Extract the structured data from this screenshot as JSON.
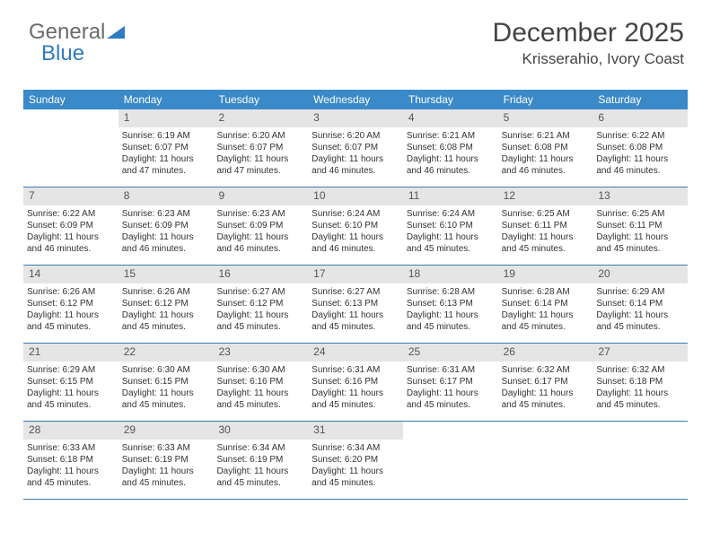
{
  "logo": {
    "text1": "General",
    "text2": "Blue"
  },
  "header": {
    "month_year": "December 2025",
    "location": "Krisserahio, Ivory Coast"
  },
  "colors": {
    "header_bg": "#3a89c9",
    "header_text": "#ffffff",
    "daynum_bg": "#e5e5e5",
    "week_border": "#3a7db0",
    "text": "#323232",
    "logo_gray": "#6b6b6b",
    "logo_blue": "#2f7bbf"
  },
  "typography": {
    "title_fontsize": 30,
    "location_fontsize": 17,
    "dayheader_fontsize": 12,
    "daynum_fontsize": 12,
    "body_fontsize": 10
  },
  "day_headers": [
    "Sunday",
    "Monday",
    "Tuesday",
    "Wednesday",
    "Thursday",
    "Friday",
    "Saturday"
  ],
  "weeks": [
    [
      {
        "n": "",
        "sr": "",
        "ss": "",
        "dl": ""
      },
      {
        "n": "1",
        "sr": "Sunrise: 6:19 AM",
        "ss": "Sunset: 6:07 PM",
        "dl": "Daylight: 11 hours and 47 minutes."
      },
      {
        "n": "2",
        "sr": "Sunrise: 6:20 AM",
        "ss": "Sunset: 6:07 PM",
        "dl": "Daylight: 11 hours and 47 minutes."
      },
      {
        "n": "3",
        "sr": "Sunrise: 6:20 AM",
        "ss": "Sunset: 6:07 PM",
        "dl": "Daylight: 11 hours and 46 minutes."
      },
      {
        "n": "4",
        "sr": "Sunrise: 6:21 AM",
        "ss": "Sunset: 6:08 PM",
        "dl": "Daylight: 11 hours and 46 minutes."
      },
      {
        "n": "5",
        "sr": "Sunrise: 6:21 AM",
        "ss": "Sunset: 6:08 PM",
        "dl": "Daylight: 11 hours and 46 minutes."
      },
      {
        "n": "6",
        "sr": "Sunrise: 6:22 AM",
        "ss": "Sunset: 6:08 PM",
        "dl": "Daylight: 11 hours and 46 minutes."
      }
    ],
    [
      {
        "n": "7",
        "sr": "Sunrise: 6:22 AM",
        "ss": "Sunset: 6:09 PM",
        "dl": "Daylight: 11 hours and 46 minutes."
      },
      {
        "n": "8",
        "sr": "Sunrise: 6:23 AM",
        "ss": "Sunset: 6:09 PM",
        "dl": "Daylight: 11 hours and 46 minutes."
      },
      {
        "n": "9",
        "sr": "Sunrise: 6:23 AM",
        "ss": "Sunset: 6:09 PM",
        "dl": "Daylight: 11 hours and 46 minutes."
      },
      {
        "n": "10",
        "sr": "Sunrise: 6:24 AM",
        "ss": "Sunset: 6:10 PM",
        "dl": "Daylight: 11 hours and 46 minutes."
      },
      {
        "n": "11",
        "sr": "Sunrise: 6:24 AM",
        "ss": "Sunset: 6:10 PM",
        "dl": "Daylight: 11 hours and 45 minutes."
      },
      {
        "n": "12",
        "sr": "Sunrise: 6:25 AM",
        "ss": "Sunset: 6:11 PM",
        "dl": "Daylight: 11 hours and 45 minutes."
      },
      {
        "n": "13",
        "sr": "Sunrise: 6:25 AM",
        "ss": "Sunset: 6:11 PM",
        "dl": "Daylight: 11 hours and 45 minutes."
      }
    ],
    [
      {
        "n": "14",
        "sr": "Sunrise: 6:26 AM",
        "ss": "Sunset: 6:12 PM",
        "dl": "Daylight: 11 hours and 45 minutes."
      },
      {
        "n": "15",
        "sr": "Sunrise: 6:26 AM",
        "ss": "Sunset: 6:12 PM",
        "dl": "Daylight: 11 hours and 45 minutes."
      },
      {
        "n": "16",
        "sr": "Sunrise: 6:27 AM",
        "ss": "Sunset: 6:12 PM",
        "dl": "Daylight: 11 hours and 45 minutes."
      },
      {
        "n": "17",
        "sr": "Sunrise: 6:27 AM",
        "ss": "Sunset: 6:13 PM",
        "dl": "Daylight: 11 hours and 45 minutes."
      },
      {
        "n": "18",
        "sr": "Sunrise: 6:28 AM",
        "ss": "Sunset: 6:13 PM",
        "dl": "Daylight: 11 hours and 45 minutes."
      },
      {
        "n": "19",
        "sr": "Sunrise: 6:28 AM",
        "ss": "Sunset: 6:14 PM",
        "dl": "Daylight: 11 hours and 45 minutes."
      },
      {
        "n": "20",
        "sr": "Sunrise: 6:29 AM",
        "ss": "Sunset: 6:14 PM",
        "dl": "Daylight: 11 hours and 45 minutes."
      }
    ],
    [
      {
        "n": "21",
        "sr": "Sunrise: 6:29 AM",
        "ss": "Sunset: 6:15 PM",
        "dl": "Daylight: 11 hours and 45 minutes."
      },
      {
        "n": "22",
        "sr": "Sunrise: 6:30 AM",
        "ss": "Sunset: 6:15 PM",
        "dl": "Daylight: 11 hours and 45 minutes."
      },
      {
        "n": "23",
        "sr": "Sunrise: 6:30 AM",
        "ss": "Sunset: 6:16 PM",
        "dl": "Daylight: 11 hours and 45 minutes."
      },
      {
        "n": "24",
        "sr": "Sunrise: 6:31 AM",
        "ss": "Sunset: 6:16 PM",
        "dl": "Daylight: 11 hours and 45 minutes."
      },
      {
        "n": "25",
        "sr": "Sunrise: 6:31 AM",
        "ss": "Sunset: 6:17 PM",
        "dl": "Daylight: 11 hours and 45 minutes."
      },
      {
        "n": "26",
        "sr": "Sunrise: 6:32 AM",
        "ss": "Sunset: 6:17 PM",
        "dl": "Daylight: 11 hours and 45 minutes."
      },
      {
        "n": "27",
        "sr": "Sunrise: 6:32 AM",
        "ss": "Sunset: 6:18 PM",
        "dl": "Daylight: 11 hours and 45 minutes."
      }
    ],
    [
      {
        "n": "28",
        "sr": "Sunrise: 6:33 AM",
        "ss": "Sunset: 6:18 PM",
        "dl": "Daylight: 11 hours and 45 minutes."
      },
      {
        "n": "29",
        "sr": "Sunrise: 6:33 AM",
        "ss": "Sunset: 6:19 PM",
        "dl": "Daylight: 11 hours and 45 minutes."
      },
      {
        "n": "30",
        "sr": "Sunrise: 6:34 AM",
        "ss": "Sunset: 6:19 PM",
        "dl": "Daylight: 11 hours and 45 minutes."
      },
      {
        "n": "31",
        "sr": "Sunrise: 6:34 AM",
        "ss": "Sunset: 6:20 PM",
        "dl": "Daylight: 11 hours and 45 minutes."
      },
      {
        "n": "",
        "sr": "",
        "ss": "",
        "dl": ""
      },
      {
        "n": "",
        "sr": "",
        "ss": "",
        "dl": ""
      },
      {
        "n": "",
        "sr": "",
        "ss": "",
        "dl": ""
      }
    ]
  ]
}
